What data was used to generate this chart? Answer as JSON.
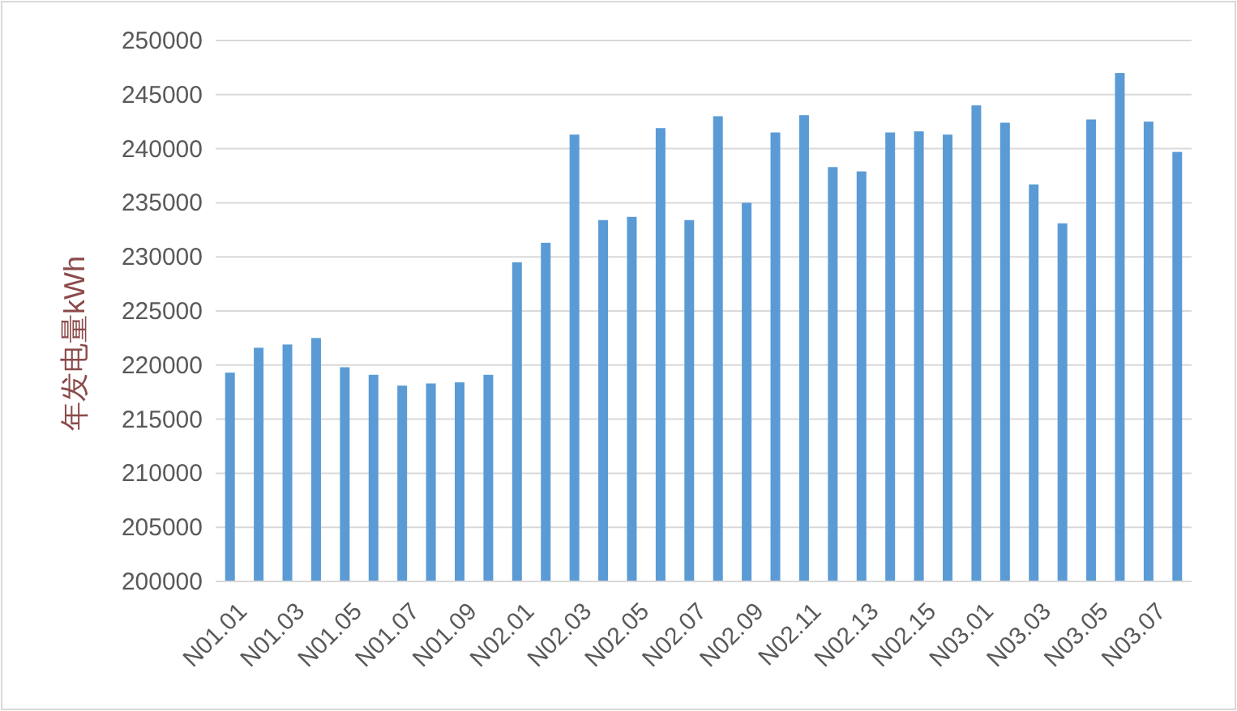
{
  "chart_data": {
    "type": "bar",
    "ylabel": "年发电量kWh",
    "categories": [
      "N01.01",
      null,
      "N01.03",
      null,
      "N01.05",
      null,
      "N01.07",
      null,
      "N01.09",
      null,
      "N02.01",
      null,
      "N02.03",
      null,
      "N02.05",
      null,
      "N02.07",
      null,
      "N02.09",
      null,
      "N02.11",
      null,
      "N02.13",
      null,
      "N02.15",
      null,
      "N03.01",
      null,
      "N03.03",
      null,
      "N03.05",
      null,
      "N03.07",
      null
    ],
    "values": [
      219300,
      221600,
      221900,
      222500,
      219800,
      219100,
      218100,
      218300,
      218400,
      219100,
      229500,
      231300,
      241300,
      233400,
      233700,
      241900,
      233400,
      243000,
      235000,
      241500,
      243100,
      238300,
      237900,
      241500,
      241600,
      241300,
      244000,
      242400,
      236700,
      233100,
      242700,
      247000,
      242500,
      239700
    ],
    "color": "#5b9bd5",
    "ylim": [
      200000,
      250000
    ],
    "yticks": [
      200000,
      205000,
      210000,
      215000,
      220000,
      225000,
      230000,
      235000,
      240000,
      245000,
      250000
    ],
    "grid": "y"
  }
}
